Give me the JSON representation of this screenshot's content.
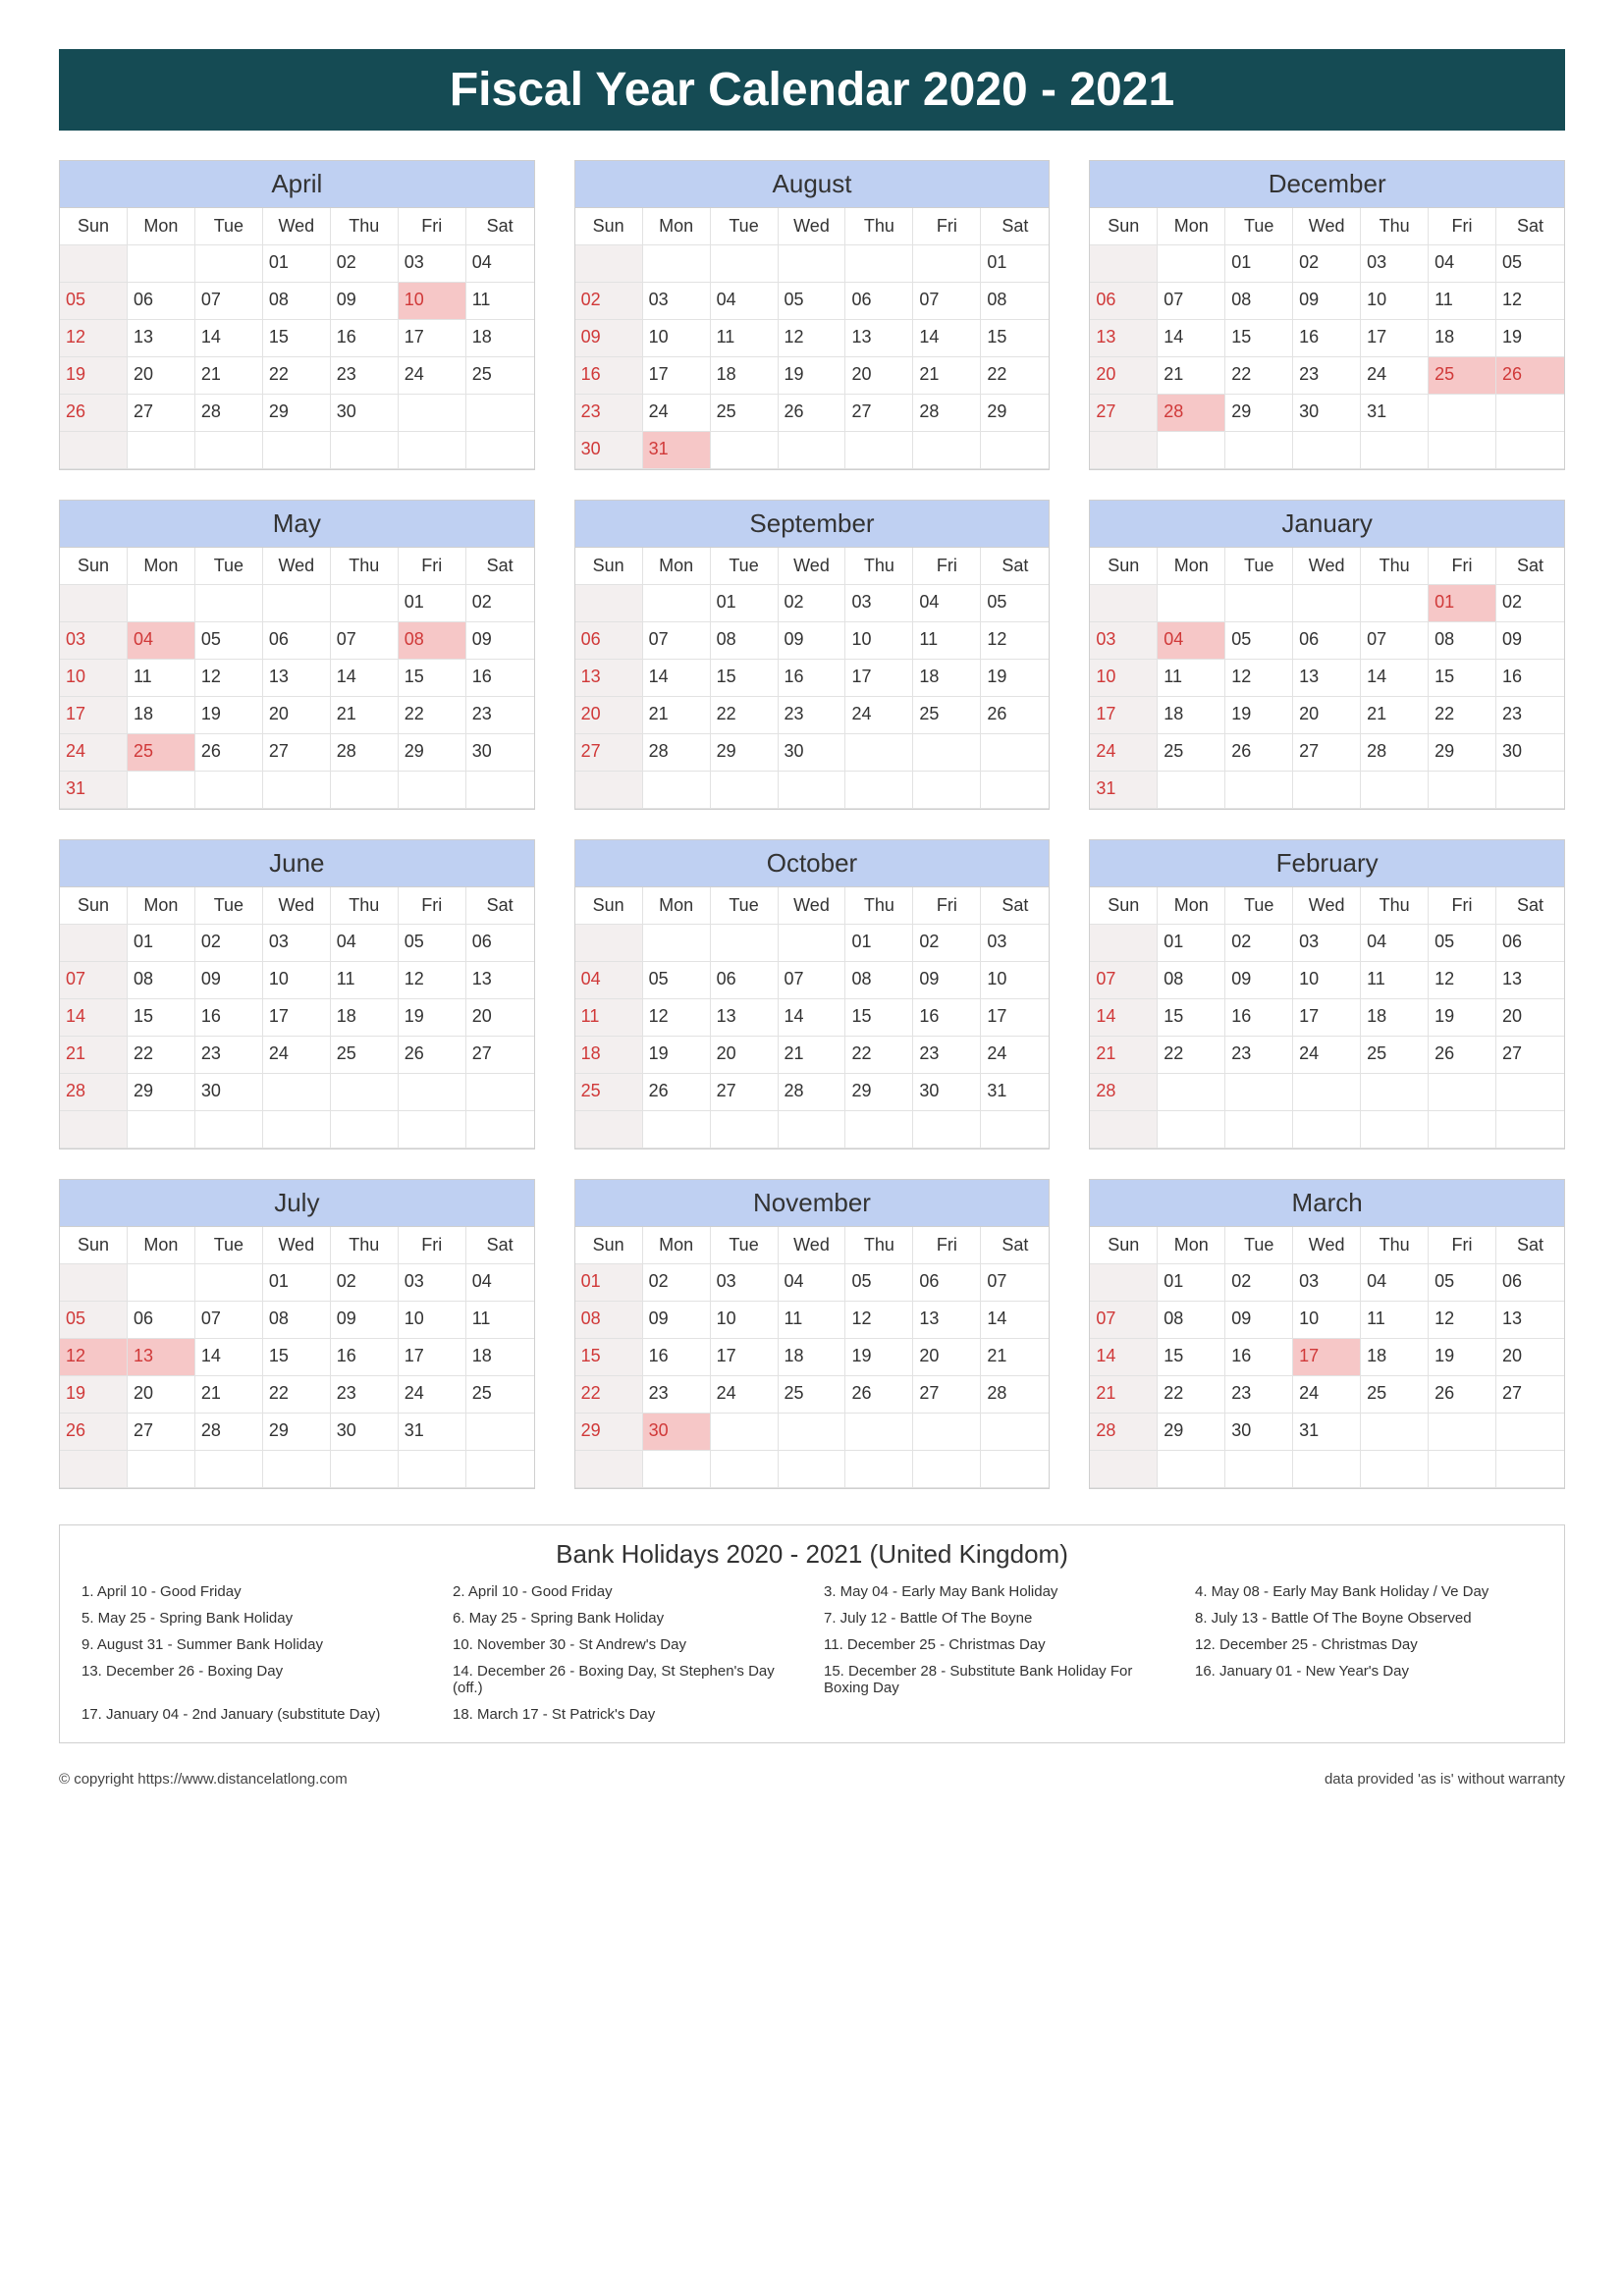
{
  "title": "Fiscal Year Calendar 2020 - 2021",
  "colors": {
    "banner_bg": "#154b54",
    "banner_text": "#ffffff",
    "month_header_bg": "#bfd0f2",
    "border": "#cfcfcf",
    "cell_border": "#e2e2e2",
    "sunday_text": "#d03838",
    "sunday_bg": "#f3efef",
    "holiday_bg": "#f6c7c7"
  },
  "dayNames": [
    "Sun",
    "Mon",
    "Tue",
    "Wed",
    "Thu",
    "Fri",
    "Sat"
  ],
  "months": [
    {
      "name": "April",
      "startDay": 3,
      "numDays": 30,
      "holidays": [
        10
      ]
    },
    {
      "name": "August",
      "startDay": 6,
      "numDays": 31,
      "holidays": [
        31
      ]
    },
    {
      "name": "December",
      "startDay": 2,
      "numDays": 31,
      "holidays": [
        25,
        26,
        28
      ]
    },
    {
      "name": "May",
      "startDay": 5,
      "numDays": 31,
      "holidays": [
        4,
        8,
        25
      ]
    },
    {
      "name": "September",
      "startDay": 2,
      "numDays": 30,
      "holidays": []
    },
    {
      "name": "January",
      "startDay": 5,
      "numDays": 31,
      "holidays": [
        1,
        4
      ]
    },
    {
      "name": "June",
      "startDay": 1,
      "numDays": 30,
      "holidays": []
    },
    {
      "name": "October",
      "startDay": 4,
      "numDays": 31,
      "holidays": []
    },
    {
      "name": "February",
      "startDay": 1,
      "numDays": 28,
      "holidays": []
    },
    {
      "name": "July",
      "startDay": 3,
      "numDays": 31,
      "holidays": [
        12,
        13
      ]
    },
    {
      "name": "November",
      "startDay": 0,
      "numDays": 30,
      "holidays": [
        30
      ]
    },
    {
      "name": "March",
      "startDay": 1,
      "numDays": 31,
      "holidays": [
        17
      ]
    }
  ],
  "holidaysSection": {
    "title": "Bank Holidays 2020 - 2021 (United Kingdom)",
    "items": [
      "1. April 10 - Good Friday",
      "2. April 10 - Good Friday",
      "3. May 04 - Early May Bank Holiday",
      "4. May 08 - Early May Bank Holiday / Ve Day",
      "5. May 25 - Spring Bank Holiday",
      "6. May 25 - Spring Bank Holiday",
      "7. July 12 - Battle Of The Boyne",
      "8. July 13 - Battle Of The Boyne Observed",
      "9. August 31 - Summer Bank Holiday",
      "10. November 30 - St Andrew's Day",
      "11. December 25 - Christmas Day",
      "12. December 25 - Christmas Day",
      "13. December 26 - Boxing Day",
      "14. December 26 - Boxing Day, St Stephen's Day (off.)",
      "15. December 28 - Substitute Bank Holiday For Boxing Day",
      "16. January 01 - New Year's Day",
      "17. January 04 - 2nd January (substitute Day)",
      "18. March 17 - St Patrick's Day"
    ]
  },
  "footer": {
    "left": "© copyright https://www.distancelatlong.com",
    "right": "data provided 'as is' without warranty"
  }
}
